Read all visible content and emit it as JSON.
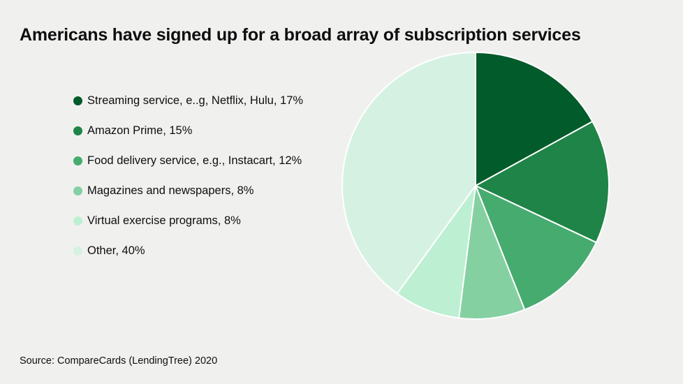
{
  "chart_data": {
    "type": "pie",
    "title": "Americans have signed up for a broad array of subscription services",
    "source": "Source: CompareCards (LendingTree) 2020",
    "legend_position": "left",
    "slices": [
      {
        "label": "Streaming service, e..g, Netflix, Hulu, 17%",
        "value": 17,
        "color": "#025b2a"
      },
      {
        "label": "Amazon Prime, 15%",
        "value": 15,
        "color": "#1f8447"
      },
      {
        "label": "Food delivery service, e.g., Instacart, 12%",
        "value": 12,
        "color": "#46ab6e"
      },
      {
        "label": "Magazines and newspapers, 8%",
        "value": 8,
        "color": "#84d0a1"
      },
      {
        "label": "Virtual exercise programs, 8%",
        "value": 8,
        "color": "#bdefd2"
      },
      {
        "label": "Other, 40%",
        "value": 40,
        "color": "#d5f1e2"
      }
    ]
  }
}
